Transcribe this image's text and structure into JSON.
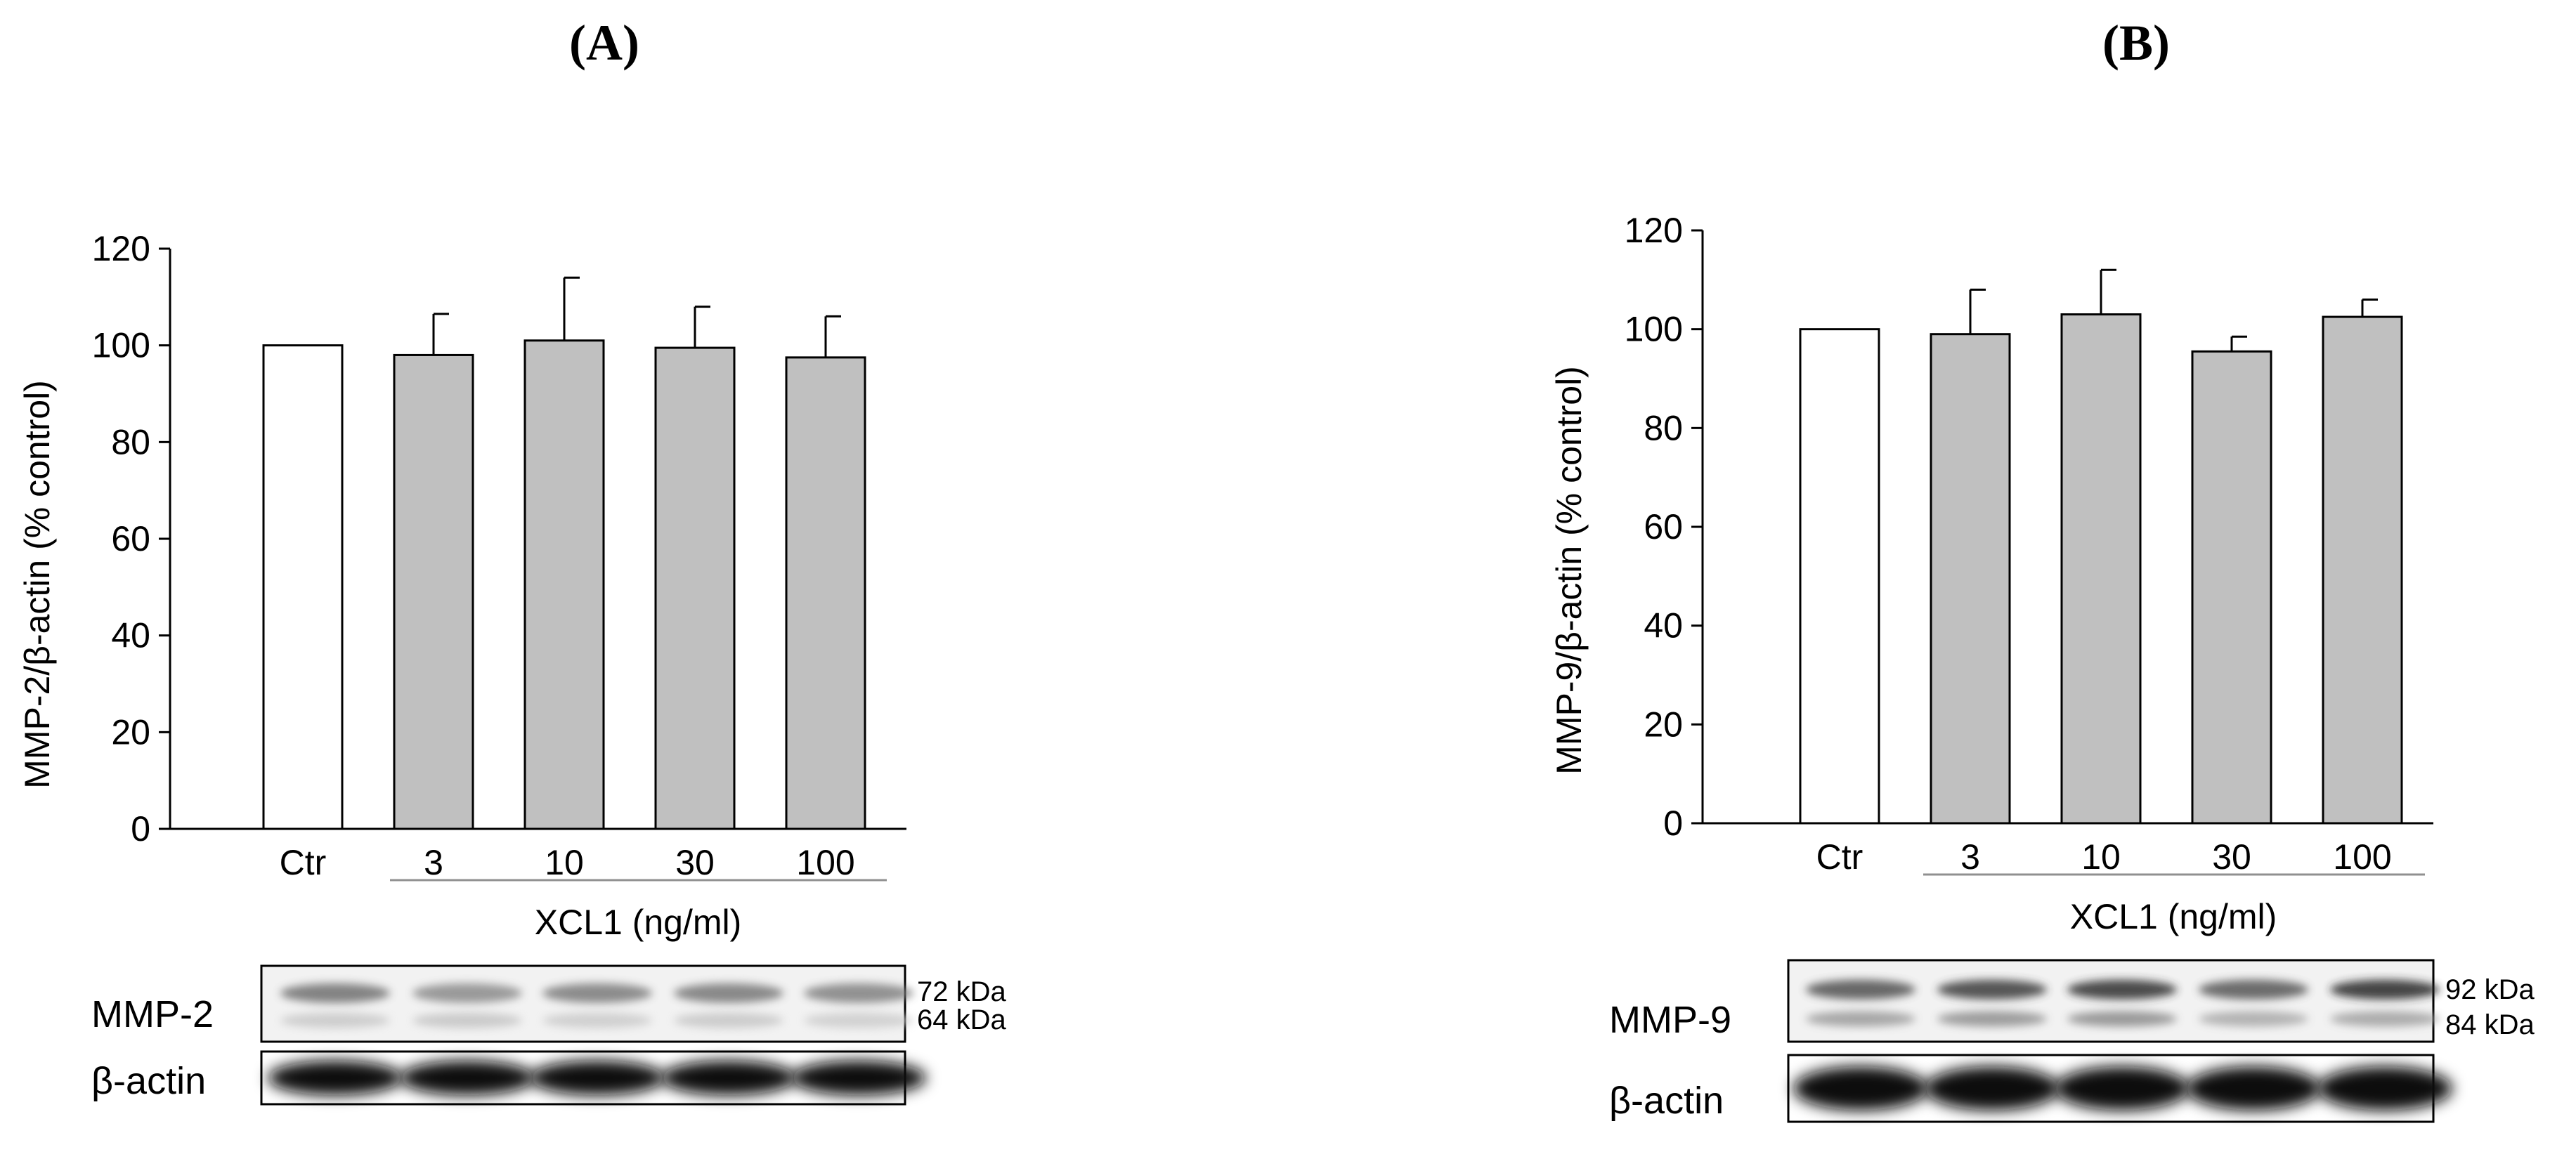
{
  "chart_data": [
    {
      "type": "bar",
      "panel": "(A)",
      "categories": [
        "Ctr",
        "3",
        "10",
        "30",
        "100"
      ],
      "values": [
        100,
        98,
        101,
        99.5,
        97.5
      ],
      "errors": [
        0,
        8.5,
        13,
        8.5,
        8.5
      ],
      "bar_colors": [
        "#ffffff",
        "#c0c0c0",
        "#c0c0c0",
        "#c0c0c0",
        "#c0c0c0"
      ],
      "ylabel": "MMP-2/β-actin (% control)",
      "xgroup_label": "XCL1 (ng/ml)",
      "ylim": [
        0,
        120
      ],
      "yticks": [
        0,
        20,
        40,
        60,
        80,
        100,
        120
      ],
      "blot": {
        "rows": [
          {
            "label": "MMP-2",
            "markers": [
              "72 kDa",
              "64 kDa"
            ]
          },
          {
            "label": "β-actin",
            "markers": []
          }
        ]
      }
    },
    {
      "type": "bar",
      "panel": "(B)",
      "categories": [
        "Ctr",
        "3",
        "10",
        "30",
        "100"
      ],
      "values": [
        100,
        99,
        103,
        95.5,
        102.5
      ],
      "errors": [
        0,
        9,
        9,
        3,
        3.5
      ],
      "bar_colors": [
        "#ffffff",
        "#c0c0c0",
        "#c0c0c0",
        "#c0c0c0",
        "#c0c0c0"
      ],
      "ylabel": "MMP-9/β-actin (% control)",
      "xgroup_label": "XCL1 (ng/ml)",
      "ylim": [
        0,
        120
      ],
      "yticks": [
        0,
        20,
        40,
        60,
        80,
        100,
        120
      ],
      "blot": {
        "rows": [
          {
            "label": "MMP-9",
            "markers": [
              "92 kDa",
              "84 kDa"
            ]
          },
          {
            "label": "β-actin",
            "markers": []
          }
        ]
      }
    }
  ]
}
